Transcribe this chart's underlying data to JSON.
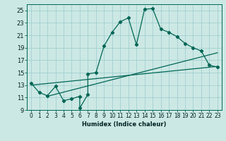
{
  "xlabel": "Humidex (Indice chaleur)",
  "background_color": "#cce8e4",
  "grid_color": "#99cccc",
  "line_color": "#006655",
  "xlim": [
    -0.5,
    23.5
  ],
  "ylim": [
    9,
    26
  ],
  "xticks": [
    0,
    1,
    2,
    3,
    4,
    5,
    6,
    7,
    8,
    9,
    10,
    11,
    12,
    13,
    14,
    15,
    16,
    17,
    18,
    19,
    20,
    21,
    22,
    23
  ],
  "yticks": [
    9,
    11,
    13,
    15,
    17,
    19,
    21,
    23,
    25
  ],
  "main_x": [
    0,
    1,
    2,
    3,
    4,
    5,
    6,
    6,
    7,
    7,
    8,
    9,
    10,
    11,
    12,
    13,
    14,
    15,
    16,
    17,
    18,
    19,
    20,
    21,
    22,
    23
  ],
  "main_y": [
    13.3,
    11.8,
    11.3,
    12.8,
    10.5,
    10.8,
    11.2,
    9.3,
    11.5,
    14.8,
    15.0,
    19.3,
    21.5,
    23.2,
    23.8,
    19.5,
    25.2,
    25.3,
    22.0,
    21.5,
    20.8,
    19.7,
    19.0,
    18.5,
    16.2,
    15.9
  ],
  "line1_x": [
    0,
    23
  ],
  "line1_y": [
    13.0,
    16.0
  ],
  "line2_x": [
    2,
    23
  ],
  "line2_y": [
    11.2,
    18.2
  ],
  "xlabel_fontsize": 6,
  "tick_fontsize": 5.5,
  "ytick_fontsize": 6
}
